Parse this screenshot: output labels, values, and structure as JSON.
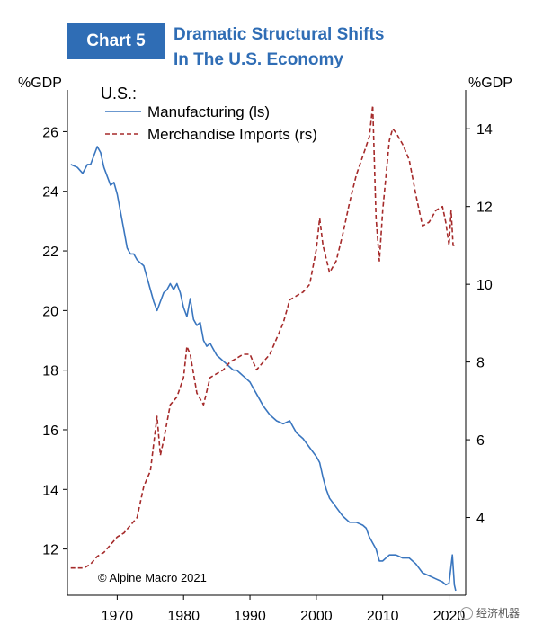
{
  "header": {
    "badge": "Chart 5",
    "title_line1": "Dramatic Structural Shifts",
    "title_line2": "In The U.S. Economy"
  },
  "watermark": "经济机器",
  "chart_data": {
    "type": "line",
    "left_axis": {
      "unit_label": "%GDP",
      "ticks": [
        12,
        14,
        16,
        18,
        20,
        22,
        24,
        26
      ],
      "range": [
        10.45,
        27.4
      ]
    },
    "right_axis": {
      "unit_label": "%GDP",
      "ticks": [
        4,
        6,
        8,
        10,
        12,
        14
      ],
      "range": [
        2.0,
        15.0
      ]
    },
    "x_axis": {
      "ticks": [
        1970,
        1980,
        1990,
        2000,
        2010,
        2020
      ],
      "range": [
        1962.5,
        2022.5
      ]
    },
    "legend": {
      "heading": "U.S.:",
      "placement": "top-left"
    },
    "grid": false,
    "source_note": "© Alpine Macro 2021",
    "series": [
      {
        "name": "Manufacturing (ls)",
        "axis": "left",
        "color": "#3a76bf",
        "style": "solid",
        "points": [
          [
            1963.0,
            24.9
          ],
          [
            1964.0,
            24.8
          ],
          [
            1964.8,
            24.6
          ],
          [
            1965.5,
            24.9
          ],
          [
            1966.0,
            24.9
          ],
          [
            1966.5,
            25.2
          ],
          [
            1967.0,
            25.5
          ],
          [
            1967.5,
            25.3
          ],
          [
            1968.0,
            24.8
          ],
          [
            1968.5,
            24.5
          ],
          [
            1969.0,
            24.2
          ],
          [
            1969.5,
            24.3
          ],
          [
            1970.0,
            23.9
          ],
          [
            1970.5,
            23.3
          ],
          [
            1971.0,
            22.7
          ],
          [
            1971.5,
            22.1
          ],
          [
            1972.0,
            21.9
          ],
          [
            1972.5,
            21.9
          ],
          [
            1973.0,
            21.7
          ],
          [
            1973.5,
            21.6
          ],
          [
            1974.0,
            21.5
          ],
          [
            1974.5,
            21.1
          ],
          [
            1975.0,
            20.7
          ],
          [
            1975.5,
            20.3
          ],
          [
            1976.0,
            20.0
          ],
          [
            1976.5,
            20.3
          ],
          [
            1977.0,
            20.6
          ],
          [
            1977.5,
            20.7
          ],
          [
            1978.0,
            20.9
          ],
          [
            1978.5,
            20.7
          ],
          [
            1979.0,
            20.9
          ],
          [
            1979.5,
            20.6
          ],
          [
            1980.0,
            20.1
          ],
          [
            1980.5,
            19.8
          ],
          [
            1981.0,
            20.4
          ],
          [
            1981.5,
            19.7
          ],
          [
            1982.0,
            19.5
          ],
          [
            1982.5,
            19.6
          ],
          [
            1983.0,
            19.0
          ],
          [
            1983.5,
            18.8
          ],
          [
            1984.0,
            18.9
          ],
          [
            1984.5,
            18.7
          ],
          [
            1985.0,
            18.5
          ],
          [
            1985.5,
            18.4
          ],
          [
            1986.0,
            18.3
          ],
          [
            1986.5,
            18.2
          ],
          [
            1987.0,
            18.1
          ],
          [
            1987.5,
            18.0
          ],
          [
            1988.0,
            18.0
          ],
          [
            1988.5,
            17.9
          ],
          [
            1989.0,
            17.8
          ],
          [
            1990.0,
            17.6
          ],
          [
            1990.5,
            17.4
          ],
          [
            1991.0,
            17.2
          ],
          [
            1991.5,
            17.0
          ],
          [
            1992.0,
            16.8
          ],
          [
            1993.0,
            16.5
          ],
          [
            1994.0,
            16.3
          ],
          [
            1995.0,
            16.2
          ],
          [
            1996.0,
            16.3
          ],
          [
            1996.5,
            16.1
          ],
          [
            1997.0,
            15.9
          ],
          [
            1998.0,
            15.7
          ],
          [
            1999.0,
            15.4
          ],
          [
            2000.0,
            15.1
          ],
          [
            2000.5,
            14.9
          ],
          [
            2001.0,
            14.4
          ],
          [
            2001.5,
            14.0
          ],
          [
            2002.0,
            13.7
          ],
          [
            2003.0,
            13.4
          ],
          [
            2004.0,
            13.1
          ],
          [
            2005.0,
            12.9
          ],
          [
            2006.0,
            12.9
          ],
          [
            2007.0,
            12.8
          ],
          [
            2007.5,
            12.7
          ],
          [
            2008.0,
            12.4
          ],
          [
            2008.5,
            12.2
          ],
          [
            2009.0,
            12.0
          ],
          [
            2009.5,
            11.6
          ],
          [
            2010.0,
            11.6
          ],
          [
            2011.0,
            11.8
          ],
          [
            2012.0,
            11.8
          ],
          [
            2013.0,
            11.7
          ],
          [
            2014.0,
            11.7
          ],
          [
            2015.0,
            11.5
          ],
          [
            2016.0,
            11.2
          ],
          [
            2017.0,
            11.1
          ],
          [
            2018.0,
            11.0
          ],
          [
            2019.0,
            10.9
          ],
          [
            2019.5,
            10.8
          ],
          [
            2020.0,
            10.85
          ],
          [
            2020.5,
            11.8
          ],
          [
            2020.8,
            10.8
          ],
          [
            2021.0,
            10.6
          ]
        ]
      },
      {
        "name": "Merchandise Imports (rs)",
        "axis": "right",
        "color": "#a52a2a",
        "style": "dashed",
        "points": [
          [
            1963.0,
            2.7
          ],
          [
            1964.0,
            2.7
          ],
          [
            1965.0,
            2.7
          ],
          [
            1966.0,
            2.8
          ],
          [
            1967.0,
            3.0
          ],
          [
            1968.0,
            3.1
          ],
          [
            1969.0,
            3.3
          ],
          [
            1970.0,
            3.5
          ],
          [
            1971.0,
            3.6
          ],
          [
            1972.0,
            3.8
          ],
          [
            1973.0,
            4.0
          ],
          [
            1974.0,
            4.8
          ],
          [
            1975.0,
            5.2
          ],
          [
            1976.0,
            6.6
          ],
          [
            1976.5,
            5.6
          ],
          [
            1977.0,
            6.0
          ],
          [
            1978.0,
            6.9
          ],
          [
            1979.0,
            7.1
          ],
          [
            1980.0,
            7.6
          ],
          [
            1980.5,
            8.4
          ],
          [
            1981.0,
            8.2
          ],
          [
            1982.0,
            7.2
          ],
          [
            1983.0,
            6.9
          ],
          [
            1984.0,
            7.6
          ],
          [
            1985.0,
            7.7
          ],
          [
            1986.0,
            7.8
          ],
          [
            1987.0,
            8.0
          ],
          [
            1988.0,
            8.1
          ],
          [
            1989.0,
            8.2
          ],
          [
            1990.0,
            8.2
          ],
          [
            1991.0,
            7.8
          ],
          [
            1992.0,
            8.0
          ],
          [
            1993.0,
            8.2
          ],
          [
            1994.0,
            8.6
          ],
          [
            1995.0,
            9.0
          ],
          [
            1996.0,
            9.6
          ],
          [
            1997.0,
            9.7
          ],
          [
            1998.0,
            9.8
          ],
          [
            1999.0,
            10.0
          ],
          [
            2000.0,
            10.9
          ],
          [
            2000.5,
            11.7
          ],
          [
            2001.0,
            11.0
          ],
          [
            2002.0,
            10.3
          ],
          [
            2003.0,
            10.6
          ],
          [
            2004.0,
            11.3
          ],
          [
            2005.0,
            12.1
          ],
          [
            2006.0,
            12.8
          ],
          [
            2007.0,
            13.3
          ],
          [
            2008.0,
            13.8
          ],
          [
            2008.5,
            14.6
          ],
          [
            2009.0,
            11.7
          ],
          [
            2009.5,
            10.6
          ],
          [
            2010.0,
            11.9
          ],
          [
            2011.0,
            13.7
          ],
          [
            2011.5,
            14.0
          ],
          [
            2012.0,
            13.9
          ],
          [
            2013.0,
            13.6
          ],
          [
            2014.0,
            13.2
          ],
          [
            2015.0,
            12.3
          ],
          [
            2016.0,
            11.5
          ],
          [
            2017.0,
            11.6
          ],
          [
            2018.0,
            11.9
          ],
          [
            2019.0,
            12.0
          ],
          [
            2019.5,
            11.6
          ],
          [
            2020.0,
            11.0
          ],
          [
            2020.3,
            11.9
          ],
          [
            2020.6,
            11.0
          ],
          [
            2021.0,
            11.0
          ]
        ]
      }
    ]
  }
}
